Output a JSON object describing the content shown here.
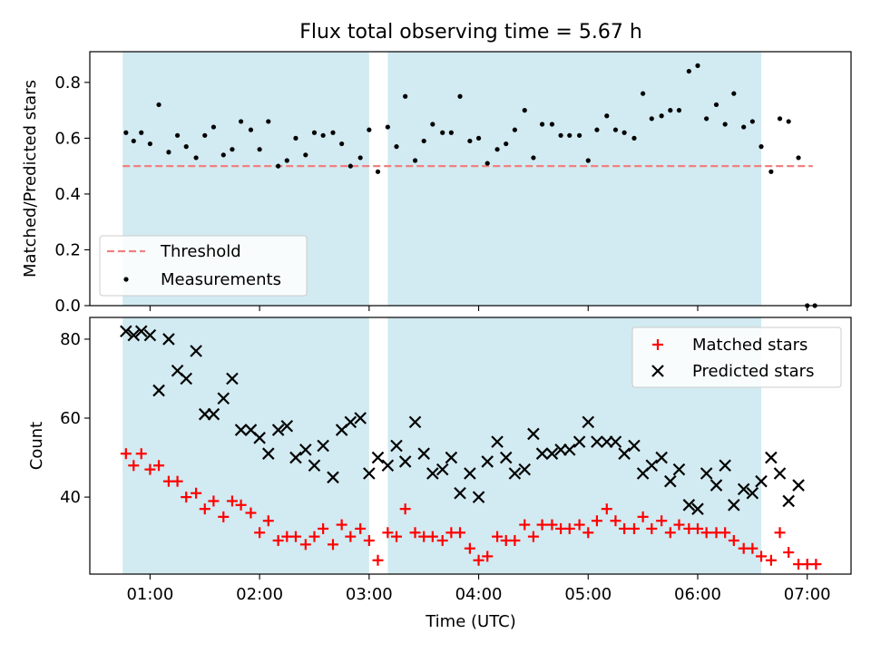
{
  "figure": {
    "title": "Flux total observing time = 5.67 h",
    "xlabel": "Time (UTC)"
  },
  "colors": {
    "shade": "#add8e6",
    "threshold": "#f08080",
    "measurements": "#000000",
    "matched": "#ff0000",
    "predicted": "#000000"
  },
  "chart_data": [
    {
      "type": "scatter",
      "panel": "top",
      "title": "Flux total observing time = 5.67 h",
      "xlabel": "",
      "ylabel": "Matched/Predicted stars",
      "x_unit": "hours UTC",
      "xlim": [
        0.45,
        7.4
      ],
      "ylim": [
        0.0,
        0.91
      ],
      "yticks": [
        0.0,
        0.2,
        0.4,
        0.6,
        0.8
      ],
      "yticklabels": [
        "0.0",
        "0.2",
        "0.4",
        "0.6",
        "0.8"
      ],
      "shaded_intervals": [
        [
          0.75,
          3.0
        ],
        [
          3.17,
          6.58
        ]
      ],
      "legend": {
        "position": "lower-left",
        "entries": [
          "Threshold",
          "Measurements"
        ]
      },
      "threshold": {
        "name": "Threshold",
        "value": 0.5,
        "x_range": [
          0.75,
          7.05
        ]
      },
      "series": [
        {
          "name": "Measurements",
          "marker": "dot",
          "points": [
            [
              0.78,
              0.62
            ],
            [
              0.85,
              0.59
            ],
            [
              0.92,
              0.62
            ],
            [
              1.0,
              0.58
            ],
            [
              1.08,
              0.72
            ],
            [
              1.17,
              0.55
            ],
            [
              1.25,
              0.61
            ],
            [
              1.33,
              0.57
            ],
            [
              1.42,
              0.53
            ],
            [
              1.5,
              0.61
            ],
            [
              1.58,
              0.64
            ],
            [
              1.67,
              0.54
            ],
            [
              1.75,
              0.56
            ],
            [
              1.83,
              0.66
            ],
            [
              1.92,
              0.63
            ],
            [
              2.0,
              0.56
            ],
            [
              2.08,
              0.66
            ],
            [
              2.17,
              0.5
            ],
            [
              2.25,
              0.52
            ],
            [
              2.33,
              0.6
            ],
            [
              2.42,
              0.54
            ],
            [
              2.5,
              0.62
            ],
            [
              2.58,
              0.61
            ],
            [
              2.67,
              0.62
            ],
            [
              2.75,
              0.58
            ],
            [
              2.83,
              0.5
            ],
            [
              2.92,
              0.53
            ],
            [
              3.0,
              0.63
            ],
            [
              3.08,
              0.48
            ],
            [
              3.17,
              0.64
            ],
            [
              3.25,
              0.57
            ],
            [
              3.33,
              0.75
            ],
            [
              3.42,
              0.52
            ],
            [
              3.5,
              0.59
            ],
            [
              3.58,
              0.65
            ],
            [
              3.67,
              0.62
            ],
            [
              3.75,
              0.62
            ],
            [
              3.83,
              0.75
            ],
            [
              3.92,
              0.59
            ],
            [
              4.0,
              0.6
            ],
            [
              4.08,
              0.51
            ],
            [
              4.17,
              0.56
            ],
            [
              4.25,
              0.58
            ],
            [
              4.33,
              0.63
            ],
            [
              4.42,
              0.7
            ],
            [
              4.5,
              0.53
            ],
            [
              4.58,
              0.65
            ],
            [
              4.67,
              0.65
            ],
            [
              4.75,
              0.61
            ],
            [
              4.83,
              0.61
            ],
            [
              4.92,
              0.61
            ],
            [
              5.0,
              0.52
            ],
            [
              5.08,
              0.63
            ],
            [
              5.17,
              0.68
            ],
            [
              5.25,
              0.63
            ],
            [
              5.33,
              0.62
            ],
            [
              5.42,
              0.6
            ],
            [
              5.5,
              0.76
            ],
            [
              5.58,
              0.67
            ],
            [
              5.67,
              0.68
            ],
            [
              5.75,
              0.7
            ],
            [
              5.83,
              0.7
            ],
            [
              5.92,
              0.84
            ],
            [
              6.0,
              0.86
            ],
            [
              6.08,
              0.67
            ],
            [
              6.17,
              0.72
            ],
            [
              6.25,
              0.65
            ],
            [
              6.33,
              0.76
            ],
            [
              6.42,
              0.64
            ],
            [
              6.5,
              0.66
            ],
            [
              6.58,
              0.57
            ],
            [
              6.67,
              0.48
            ],
            [
              6.75,
              0.67
            ],
            [
              6.83,
              0.66
            ],
            [
              6.92,
              0.53
            ],
            [
              7.0,
              0.0
            ],
            [
              7.07,
              0.0
            ]
          ]
        }
      ]
    },
    {
      "type": "scatter",
      "panel": "bottom",
      "xlabel": "Time (UTC)",
      "ylabel": "Count",
      "x_unit": "hours UTC",
      "xlim": [
        0.45,
        7.4
      ],
      "ylim": [
        20.5,
        85.5
      ],
      "xticks": [
        1,
        2,
        3,
        4,
        5,
        6,
        7
      ],
      "xticklabels": [
        "01:00",
        "02:00",
        "03:00",
        "04:00",
        "05:00",
        "06:00",
        "07:00"
      ],
      "yticks": [
        40,
        60,
        80
      ],
      "yticklabels": [
        "40",
        "60",
        "80"
      ],
      "shaded_intervals": [
        [
          0.75,
          3.0
        ],
        [
          3.17,
          6.58
        ]
      ],
      "legend": {
        "position": "top-right",
        "entries": [
          "Matched stars",
          "Predicted stars"
        ]
      },
      "series": [
        {
          "name": "Matched stars",
          "marker": "plus",
          "points": [
            [
              0.78,
              51
            ],
            [
              0.85,
              48
            ],
            [
              0.92,
              51
            ],
            [
              1.0,
              47
            ],
            [
              1.08,
              48
            ],
            [
              1.17,
              44
            ],
            [
              1.25,
              44
            ],
            [
              1.33,
              40
            ],
            [
              1.42,
              41
            ],
            [
              1.5,
              37
            ],
            [
              1.58,
              39
            ],
            [
              1.67,
              35
            ],
            [
              1.75,
              39
            ],
            [
              1.83,
              38
            ],
            [
              1.92,
              36
            ],
            [
              2.0,
              31
            ],
            [
              2.08,
              34
            ],
            [
              2.17,
              29
            ],
            [
              2.25,
              30
            ],
            [
              2.33,
              30
            ],
            [
              2.42,
              28
            ],
            [
              2.5,
              30
            ],
            [
              2.58,
              32
            ],
            [
              2.67,
              28
            ],
            [
              2.75,
              33
            ],
            [
              2.83,
              30
            ],
            [
              2.92,
              32
            ],
            [
              3.0,
              29
            ],
            [
              3.08,
              24
            ],
            [
              3.17,
              31
            ],
            [
              3.25,
              30
            ],
            [
              3.33,
              37
            ],
            [
              3.42,
              31
            ],
            [
              3.5,
              30
            ],
            [
              3.58,
              30
            ],
            [
              3.67,
              29
            ],
            [
              3.75,
              31
            ],
            [
              3.83,
              31
            ],
            [
              3.92,
              27
            ],
            [
              4.0,
              24
            ],
            [
              4.08,
              25
            ],
            [
              4.17,
              30
            ],
            [
              4.25,
              29
            ],
            [
              4.33,
              29
            ],
            [
              4.42,
              33
            ],
            [
              4.5,
              30
            ],
            [
              4.58,
              33
            ],
            [
              4.67,
              33
            ],
            [
              4.75,
              32
            ],
            [
              4.83,
              32
            ],
            [
              4.92,
              33
            ],
            [
              5.0,
              31
            ],
            [
              5.08,
              34
            ],
            [
              5.17,
              37
            ],
            [
              5.25,
              34
            ],
            [
              5.33,
              32
            ],
            [
              5.42,
              32
            ],
            [
              5.5,
              35
            ],
            [
              5.58,
              32
            ],
            [
              5.67,
              34
            ],
            [
              5.75,
              31
            ],
            [
              5.83,
              33
            ],
            [
              5.92,
              32
            ],
            [
              6.0,
              32
            ],
            [
              6.08,
              31
            ],
            [
              6.17,
              31
            ],
            [
              6.25,
              31
            ],
            [
              6.33,
              29
            ],
            [
              6.42,
              27
            ],
            [
              6.5,
              27
            ],
            [
              6.58,
              25
            ],
            [
              6.67,
              24
            ],
            [
              6.75,
              31
            ],
            [
              6.83,
              26
            ],
            [
              6.92,
              23
            ],
            [
              7.0,
              23
            ],
            [
              7.08,
              23
            ]
          ]
        },
        {
          "name": "Predicted stars",
          "marker": "x",
          "points": [
            [
              0.78,
              82
            ],
            [
              0.85,
              81
            ],
            [
              0.92,
              82
            ],
            [
              1.0,
              81
            ],
            [
              1.08,
              67
            ],
            [
              1.17,
              80
            ],
            [
              1.25,
              72
            ],
            [
              1.33,
              70
            ],
            [
              1.42,
              77
            ],
            [
              1.5,
              61
            ],
            [
              1.58,
              61
            ],
            [
              1.67,
              65
            ],
            [
              1.75,
              70
            ],
            [
              1.83,
              57
            ],
            [
              1.92,
              57
            ],
            [
              2.0,
              55
            ],
            [
              2.08,
              51
            ],
            [
              2.17,
              57
            ],
            [
              2.25,
              58
            ],
            [
              2.33,
              50
            ],
            [
              2.42,
              52
            ],
            [
              2.5,
              48
            ],
            [
              2.58,
              53
            ],
            [
              2.67,
              45
            ],
            [
              2.75,
              57
            ],
            [
              2.83,
              59
            ],
            [
              2.92,
              60
            ],
            [
              3.0,
              46
            ],
            [
              3.08,
              50
            ],
            [
              3.17,
              48
            ],
            [
              3.25,
              53
            ],
            [
              3.33,
              49
            ],
            [
              3.42,
              59
            ],
            [
              3.5,
              51
            ],
            [
              3.58,
              46
            ],
            [
              3.67,
              47
            ],
            [
              3.75,
              50
            ],
            [
              3.83,
              41
            ],
            [
              3.92,
              46
            ],
            [
              4.0,
              40
            ],
            [
              4.08,
              49
            ],
            [
              4.17,
              54
            ],
            [
              4.25,
              50
            ],
            [
              4.33,
              46
            ],
            [
              4.42,
              47
            ],
            [
              4.5,
              56
            ],
            [
              4.58,
              51
            ],
            [
              4.67,
              51
            ],
            [
              4.75,
              52
            ],
            [
              4.83,
              52
            ],
            [
              4.92,
              54
            ],
            [
              5.0,
              59
            ],
            [
              5.08,
              54
            ],
            [
              5.17,
              54
            ],
            [
              5.25,
              54
            ],
            [
              5.33,
              51
            ],
            [
              5.42,
              53
            ],
            [
              5.5,
              46
            ],
            [
              5.58,
              48
            ],
            [
              5.67,
              50
            ],
            [
              5.75,
              44
            ],
            [
              5.83,
              47
            ],
            [
              5.92,
              38
            ],
            [
              6.0,
              37
            ],
            [
              6.08,
              46
            ],
            [
              6.17,
              43
            ],
            [
              6.25,
              48
            ],
            [
              6.33,
              38
            ],
            [
              6.42,
              42
            ],
            [
              6.5,
              41
            ],
            [
              6.58,
              44
            ],
            [
              6.67,
              50
            ],
            [
              6.75,
              46
            ],
            [
              6.83,
              39
            ],
            [
              6.92,
              43
            ]
          ]
        }
      ]
    }
  ]
}
